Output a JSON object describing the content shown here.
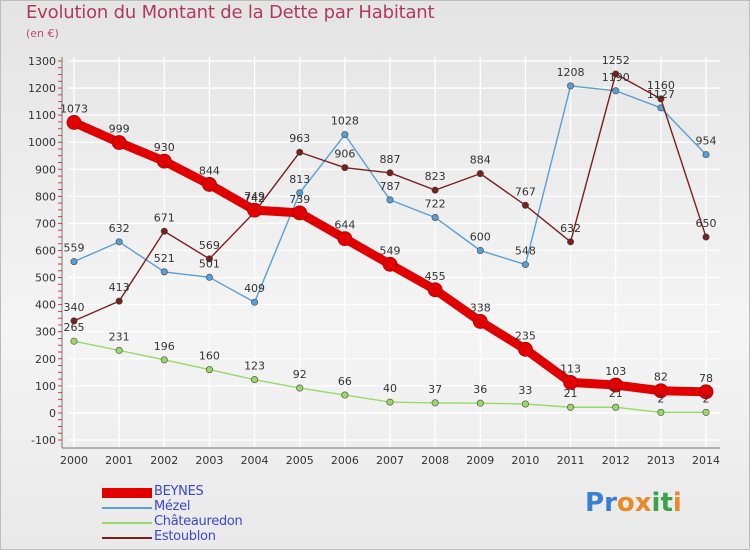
{
  "header": {
    "title": "Evolution du Montant de la Dette par Habitant",
    "unit": "(en €)"
  },
  "logo": {
    "letters": [
      {
        "ch": "P",
        "color": "#3a7fd0"
      },
      {
        "ch": "r",
        "color": "#3a7fd0"
      },
      {
        "ch": "o",
        "color": "#e8892a"
      },
      {
        "ch": "x",
        "color": "#e8892a"
      },
      {
        "ch": "i",
        "color": "#3aa24a"
      },
      {
        "ch": "t",
        "color": "#3aa24a"
      },
      {
        "ch": "i",
        "color": "#e8892a"
      }
    ]
  },
  "chart_data": {
    "type": "line",
    "title": "Evolution du Montant de la Dette par Habitant",
    "ylabel": "(en €)",
    "x": [
      "2000",
      "2001",
      "2002",
      "2003",
      "2004",
      "2005",
      "2006",
      "2007",
      "2008",
      "2009",
      "2010",
      "2011",
      "2012",
      "2013",
      "2014"
    ],
    "ylim": [
      -100,
      1300
    ],
    "yticks": [
      -100,
      0,
      100,
      200,
      300,
      400,
      500,
      600,
      700,
      800,
      900,
      1000,
      1100,
      1200,
      1300
    ],
    "grid": true,
    "legend_position": "bottom-left",
    "series": [
      {
        "name": "BEYNES",
        "color": "#e00000",
        "width": "thick",
        "values": [
          1073,
          999,
          930,
          844,
          749,
          739,
          644,
          549,
          455,
          338,
          235,
          113,
          103,
          82,
          78
        ]
      },
      {
        "name": "Mézel",
        "color": "#5a9ed6",
        "width": "thin",
        "values": [
          559,
          632,
          521,
          501,
          409,
          813,
          1028,
          787,
          722,
          600,
          548,
          1208,
          1190,
          1127,
          954
        ]
      },
      {
        "name": "Châteauredon",
        "color": "#9ad86a",
        "width": "thin",
        "values": [
          265,
          231,
          196,
          160,
          123,
          92,
          66,
          40,
          37,
          36,
          33,
          21,
          21,
          2,
          2
        ]
      },
      {
        "name": "Estoublon",
        "color": "#7a1f1f",
        "width": "thin",
        "values": [
          340,
          413,
          671,
          569,
          742,
          963,
          906,
          887,
          823,
          884,
          767,
          632,
          1252,
          1160,
          650
        ]
      }
    ]
  }
}
